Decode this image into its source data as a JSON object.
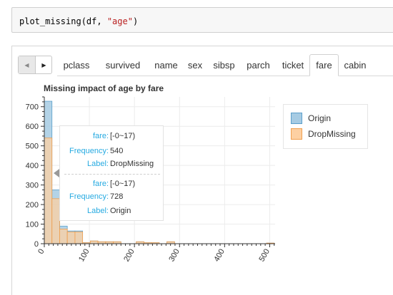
{
  "code": {
    "func": "plot_missing(df, ",
    "arg": "\"age\"",
    "close": ")"
  },
  "tabs": [
    "pclass",
    "survived",
    "name",
    "sex",
    "sibsp",
    "parch",
    "ticket",
    "fare",
    "cabin"
  ],
  "active_tab": "fare",
  "nav": {
    "prev_icon": "chevron-left-icon",
    "next_icon": "chevron-right-icon"
  },
  "legend": [
    {
      "label": "Origin",
      "fill": "#a6cbe3",
      "stroke": "#5b9fcb"
    },
    {
      "label": "DropMissing",
      "fill": "#fdd0a2",
      "stroke": "#f0a050"
    }
  ],
  "tooltip": {
    "group1": {
      "fare_key": "fare:",
      "fare_val": "[-0~17)",
      "freq_key": "Frequency:",
      "freq_val": "540",
      "label_key": "Label:",
      "label_val": "DropMissing"
    },
    "group2": {
      "fare_key": "fare:",
      "fare_val": "[-0~17)",
      "freq_key": "Frequency:",
      "freq_val": "728",
      "label_key": "Label:",
      "label_val": "Origin"
    }
  },
  "chart_data": {
    "type": "bar",
    "title": "Missing impact of age by fare",
    "xlabel": "",
    "ylabel": "",
    "xlim": [
      0,
      512
    ],
    "ylim": [
      0,
      750
    ],
    "xticks": [
      0,
      100,
      200,
      300,
      400,
      500
    ],
    "yticks": [
      0,
      100,
      200,
      300,
      400,
      500,
      600,
      700
    ],
    "bin_width": 17,
    "bin_starts": [
      0,
      17,
      34,
      51,
      68,
      85,
      102,
      119,
      136,
      153,
      170,
      187,
      204,
      221,
      238,
      255,
      272,
      289,
      306,
      323,
      340,
      357,
      374,
      391,
      408,
      425,
      442,
      459,
      476,
      493
    ],
    "series": [
      {
        "name": "Origin",
        "values": [
          728,
          275,
          90,
          65,
          65,
          5,
          14,
          10,
          10,
          10,
          0,
          0,
          10,
          5,
          5,
          0,
          10,
          0,
          0,
          0,
          0,
          0,
          0,
          0,
          0,
          0,
          0,
          0,
          0,
          3
        ]
      },
      {
        "name": "DropMissing",
        "values": [
          540,
          230,
          75,
          60,
          60,
          5,
          14,
          10,
          10,
          10,
          0,
          0,
          10,
          5,
          5,
          0,
          10,
          0,
          0,
          0,
          0,
          0,
          0,
          0,
          0,
          0,
          0,
          0,
          0,
          3
        ]
      }
    ],
    "grid": true,
    "legend_position": "right"
  }
}
